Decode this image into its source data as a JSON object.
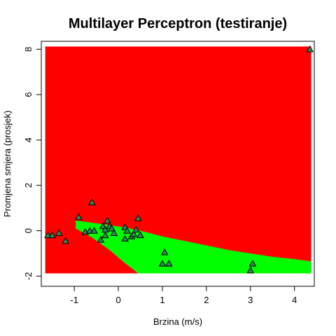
{
  "chart_data": {
    "type": "scatter",
    "title": "Multilayer Perceptron (testiranje)",
    "xlabel": "Brzina (m/s)",
    "ylabel": "Promjena smjera (prosjek)",
    "xlim": [
      -1.75,
      4.45
    ],
    "ylim": [
      -2.45,
      8.35
    ],
    "x_ticks": [
      -1,
      0,
      1,
      2,
      3,
      4
    ],
    "y_ticks": [
      -2,
      0,
      2,
      4,
      6,
      8
    ],
    "region_colors": {
      "background_class": "#ff0000",
      "predicted_class": "#00ff00"
    },
    "point_fill": "#2e8b57",
    "point_stroke": "#000000",
    "point_marker": "triangle",
    "region_extent": {
      "x": [
        -1.66,
        4.38
      ],
      "y": [
        -1.88,
        8.12
      ]
    },
    "green_region_upper_boundary": [
      [
        -0.97,
        0.45
      ],
      [
        -0.6,
        0.35
      ],
      [
        -0.2,
        0.25
      ],
      [
        0.2,
        0.12
      ],
      [
        0.5,
        0.0
      ],
      [
        1.0,
        -0.25
      ],
      [
        1.5,
        -0.45
      ],
      [
        2.0,
        -0.65
      ],
      [
        2.5,
        -0.85
      ],
      [
        3.0,
        -1.0
      ],
      [
        3.5,
        -1.15
      ],
      [
        4.0,
        -1.25
      ],
      [
        4.38,
        -1.35
      ]
    ],
    "green_region_lower_boundary": [
      [
        -0.97,
        0.1
      ],
      [
        -0.6,
        -0.3
      ],
      [
        -0.2,
        -0.85
      ],
      [
        0.1,
        -1.35
      ],
      [
        0.45,
        -1.88
      ]
    ],
    "points": [
      {
        "x": -1.6,
        "y": -0.2
      },
      {
        "x": -1.5,
        "y": -0.2
      },
      {
        "x": -1.35,
        "y": -0.1
      },
      {
        "x": -1.2,
        "y": -0.45
      },
      {
        "x": -0.9,
        "y": 0.6
      },
      {
        "x": -0.75,
        "y": -0.05
      },
      {
        "x": -0.65,
        "y": 0.0
      },
      {
        "x": -0.6,
        "y": 1.25
      },
      {
        "x": -0.55,
        "y": 0.0
      },
      {
        "x": -0.4,
        "y": -0.4
      },
      {
        "x": -0.35,
        "y": 0.2
      },
      {
        "x": -0.3,
        "y": -0.2
      },
      {
        "x": -0.3,
        "y": 0.05
      },
      {
        "x": -0.25,
        "y": 0.45
      },
      {
        "x": -0.2,
        "y": 0.2
      },
      {
        "x": -0.15,
        "y": 0.1
      },
      {
        "x": -0.1,
        "y": -0.1
      },
      {
        "x": 0.15,
        "y": -0.35
      },
      {
        "x": 0.15,
        "y": 0.15
      },
      {
        "x": 0.2,
        "y": 0.0
      },
      {
        "x": 0.3,
        "y": -0.25
      },
      {
        "x": 0.35,
        "y": -0.15
      },
      {
        "x": 0.4,
        "y": 0.05
      },
      {
        "x": 0.45,
        "y": 0.55
      },
      {
        "x": 0.5,
        "y": -0.2
      },
      {
        "x": 1.0,
        "y": -1.45
      },
      {
        "x": 1.05,
        "y": -0.95
      },
      {
        "x": 1.15,
        "y": -1.45
      },
      {
        "x": 3.0,
        "y": -1.75
      },
      {
        "x": 3.05,
        "y": -1.45
      },
      {
        "x": 4.35,
        "y": 8.0
      }
    ]
  }
}
